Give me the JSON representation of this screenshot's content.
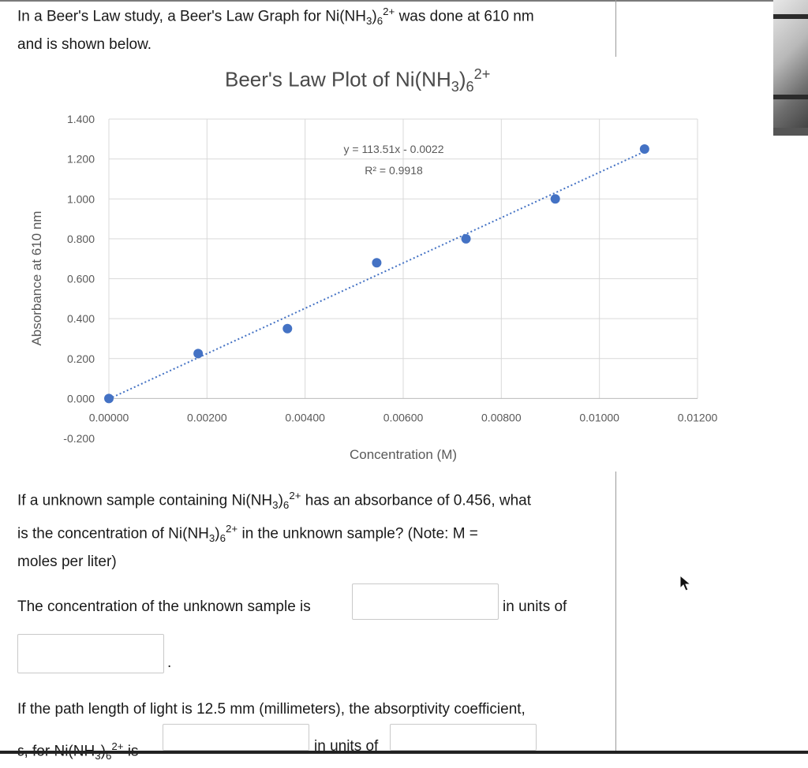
{
  "question": {
    "intro_line1_a": "In a Beer's Law study, a Beer's Law Graph for Ni(NH",
    "intro_sub3": "3",
    "intro_paren": ")",
    "intro_sub6": "6",
    "intro_sup": "2+",
    "intro_line1_b": " was done at 610 nm",
    "intro_line2": "and is shown below.",
    "unknown_a": "If a unknown sample containing Ni(NH",
    "unknown_sub3": "3",
    "unknown_paren": ")",
    "unknown_sub6": "6",
    "unknown_sup": "2+",
    "unknown_b": " has an absorbance of 0.456, what",
    "unknown_c": "is the concentration of Ni(NH",
    "unknown_c_sub3": "3",
    "unknown_c_paren": ")",
    "unknown_c_sub6": "6",
    "unknown_c_sup": "2+",
    "unknown_d": " in the unknown sample?  (Note:  M =",
    "unknown_e": "moles per liter)",
    "concentration_label": "The concentration of the unknown sample is",
    "units_of_label": "in units of",
    "period": ".",
    "path_length_a": "If the path length of light is 12.5 mm (millimeters), the absorptivity coefficient,",
    "epsilon_a": "ε, for Ni(NH",
    "epsilon_sub3": "3",
    "epsilon_paren": ")",
    "epsilon_sub6": "6",
    "epsilon_sup": "2+",
    "epsilon_is": " is",
    "epsilon_units": "in units of"
  },
  "chart_title": {
    "a": "Beer's Law Plot of Ni(NH",
    "sub3": "3",
    "paren": ")",
    "sub6": "6",
    "sup": "2+"
  },
  "chart_data": {
    "type": "scatter",
    "title": "Beer's Law Plot of Ni(NH3)6 2+",
    "xlabel": "Concentration (M)",
    "ylabel": "Absorbance at 610 nm",
    "xlim": [
      0,
      0.012
    ],
    "ylim": [
      -0.2,
      1.4
    ],
    "x_ticks": [
      "0.00000",
      "0.00200",
      "0.00400",
      "0.00600",
      "0.00800",
      "0.01000",
      "0.01200"
    ],
    "y_ticks": [
      "-0.200",
      "0.000",
      "0.200",
      "0.400",
      "0.600",
      "0.800",
      "1.000",
      "1.200",
      "1.400"
    ],
    "x_tick_values": [
      0,
      0.002,
      0.004,
      0.006,
      0.008,
      0.01,
      0.012
    ],
    "y_tick_values": [
      -0.2,
      0,
      0.2,
      0.4,
      0.6,
      0.8,
      1.0,
      1.2,
      1.4
    ],
    "series": [
      {
        "x": [
          0.0,
          0.00182,
          0.00364,
          0.00546,
          0.00728,
          0.0091,
          0.01092
        ],
        "y": [
          0.0,
          0.225,
          0.35,
          0.68,
          0.8,
          1.0,
          1.25
        ]
      }
    ],
    "trendline": {
      "slope": 113.51,
      "intercept": -0.0022,
      "style": "dotted"
    },
    "equation_label": "y = 113.51x - 0.0022",
    "r2_label": "R² = 0.9918",
    "grid": true,
    "marker_color": "#4472c4",
    "trend_color": "#4472c4"
  }
}
